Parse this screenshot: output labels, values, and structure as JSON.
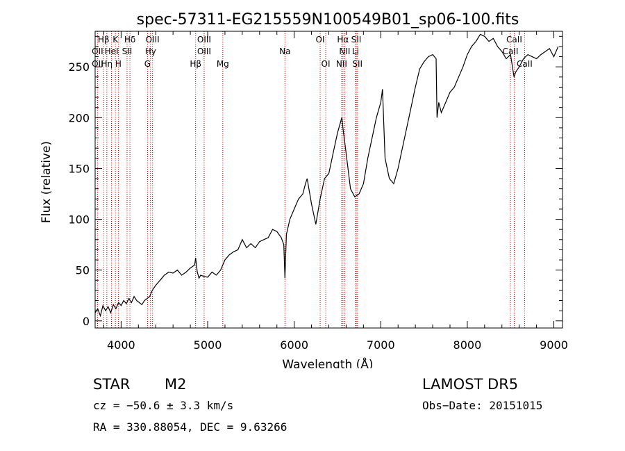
{
  "chart_data": {
    "type": "line",
    "title": "spec-57311-EG215559N100549B01_sp06-100.fits",
    "xlabel": "Wavelength (Å)",
    "ylabel": "Flux (relative)",
    "xlim": [
      3700,
      9100
    ],
    "ylim": [
      -7,
      285
    ],
    "xticks": [
      4000,
      5000,
      6000,
      7000,
      8000,
      9000
    ],
    "yticks": [
      0,
      50,
      100,
      150,
      200,
      250
    ],
    "line_color": "#000000",
    "marker_color": "#c00000",
    "grid": false,
    "series": [
      {
        "x": [
          3700,
          3730,
          3760,
          3790,
          3820,
          3850,
          3880,
          3910,
          3940,
          3970,
          4000,
          4030,
          4060,
          4090,
          4120,
          4150,
          4180,
          4210,
          4240,
          4270,
          4300,
          4330,
          4360,
          4400,
          4450,
          4500,
          4550,
          4600,
          4650,
          4700,
          4750,
          4800,
          4850,
          4861,
          4880,
          4900,
          4920,
          4950,
          5000,
          5050,
          5100,
          5150,
          5200,
          5250,
          5300,
          5350,
          5400,
          5450,
          5500,
          5550,
          5600,
          5650,
          5700,
          5750,
          5800,
          5850,
          5880,
          5893,
          5910,
          5950,
          6000,
          6050,
          6100,
          6130,
          6150,
          6200,
          6250,
          6300,
          6350,
          6400,
          6450,
          6500,
          6550,
          6563,
          6600,
          6650,
          6700,
          6750,
          6800,
          6850,
          6900,
          6950,
          7000,
          7020,
          7050,
          7100,
          7150,
          7200,
          7250,
          7300,
          7350,
          7400,
          7450,
          7500,
          7550,
          7600,
          7640,
          7650,
          7670,
          7700,
          7750,
          7800,
          7850,
          7900,
          7950,
          8000,
          8050,
          8100,
          8150,
          8200,
          8250,
          8300,
          8350,
          8400,
          8450,
          8500,
          8540,
          8560,
          8600,
          8650,
          8700,
          8750,
          8800,
          8850,
          8900,
          8950,
          9000,
          9050
        ],
        "y": [
          8,
          12,
          5,
          15,
          10,
          14,
          8,
          16,
          12,
          18,
          15,
          20,
          17,
          22,
          18,
          24,
          20,
          18,
          16,
          20,
          22,
          24,
          30,
          35,
          40,
          45,
          48,
          47,
          50,
          45,
          48,
          52,
          55,
          62,
          48,
          42,
          45,
          44,
          43,
          48,
          45,
          50,
          60,
          65,
          68,
          70,
          80,
          72,
          76,
          72,
          78,
          80,
          82,
          90,
          88,
          82,
          75,
          42,
          85,
          100,
          110,
          120,
          125,
          135,
          140,
          115,
          95,
          120,
          140,
          145,
          165,
          185,
          200,
          190,
          165,
          130,
          122,
          125,
          135,
          160,
          180,
          200,
          215,
          228,
          160,
          140,
          135,
          150,
          170,
          190,
          210,
          230,
          248,
          255,
          260,
          262,
          258,
          200,
          215,
          205,
          215,
          225,
          230,
          240,
          250,
          262,
          270,
          275,
          282,
          280,
          275,
          278,
          270,
          265,
          258,
          262,
          240,
          245,
          250,
          258,
          262,
          260,
          258,
          262,
          265,
          268,
          260,
          270
        ]
      }
    ],
    "lines": [
      {
        "label": "Hβ",
        "x": 3798,
        "tier": 0
      },
      {
        "label": "K",
        "x": 3934,
        "tier": 0
      },
      {
        "label": "Hδ",
        "x": 4102,
        "tier": 0
      },
      {
        "label": "OIII",
        "x": 4363,
        "tier": 0
      },
      {
        "label": "OIII",
        "x": 4959,
        "tier": 0
      },
      {
        "label": "OI",
        "x": 6300,
        "tier": 0
      },
      {
        "label": "Hα",
        "x": 6563,
        "tier": 0
      },
      {
        "label": "SII",
        "x": 6717,
        "tier": 0
      },
      {
        "label": "CaII",
        "x": 8542,
        "tier": 0
      },
      {
        "label": "OII",
        "x": 3727,
        "tier": 1
      },
      {
        "label": "HeI",
        "x": 3889,
        "tier": 1
      },
      {
        "label": "SII",
        "x": 4069,
        "tier": 1
      },
      {
        "label": "Hγ",
        "x": 4340,
        "tier": 1
      },
      {
        "label": "OIII",
        "x": 4959,
        "tier": 1
      },
      {
        "label": "Na",
        "x": 5893,
        "tier": 1
      },
      {
        "label": "NII",
        "x": 6584,
        "tier": 1
      },
      {
        "label": "Li",
        "x": 6708,
        "tier": 1
      },
      {
        "label": "CaII",
        "x": 8498,
        "tier": 1
      },
      {
        "label": "OII",
        "x": 3727,
        "tier": 2
      },
      {
        "label": "Hη",
        "x": 3835,
        "tier": 2
      },
      {
        "label": "H",
        "x": 3968,
        "tier": 2
      },
      {
        "label": "G",
        "x": 4305,
        "tier": 2
      },
      {
        "label": "Hβ",
        "x": 4861,
        "tier": 2
      },
      {
        "label": "Mg",
        "x": 5175,
        "tier": 2
      },
      {
        "label": "OI",
        "x": 6364,
        "tier": 2
      },
      {
        "label": "NII",
        "x": 6548,
        "tier": 2
      },
      {
        "label": "SII",
        "x": 6731,
        "tier": 2
      },
      {
        "label": "CaII",
        "x": 8662,
        "tier": 2
      }
    ]
  },
  "info": {
    "class": "STAR",
    "subclass": "M2",
    "survey": "LAMOST DR5",
    "cz": "cz = −50.6 ± 3.3 km/s",
    "obs_date": "Obs−Date: 20151015",
    "coords": "RA = 330.88054, DEC =   9.63266"
  }
}
